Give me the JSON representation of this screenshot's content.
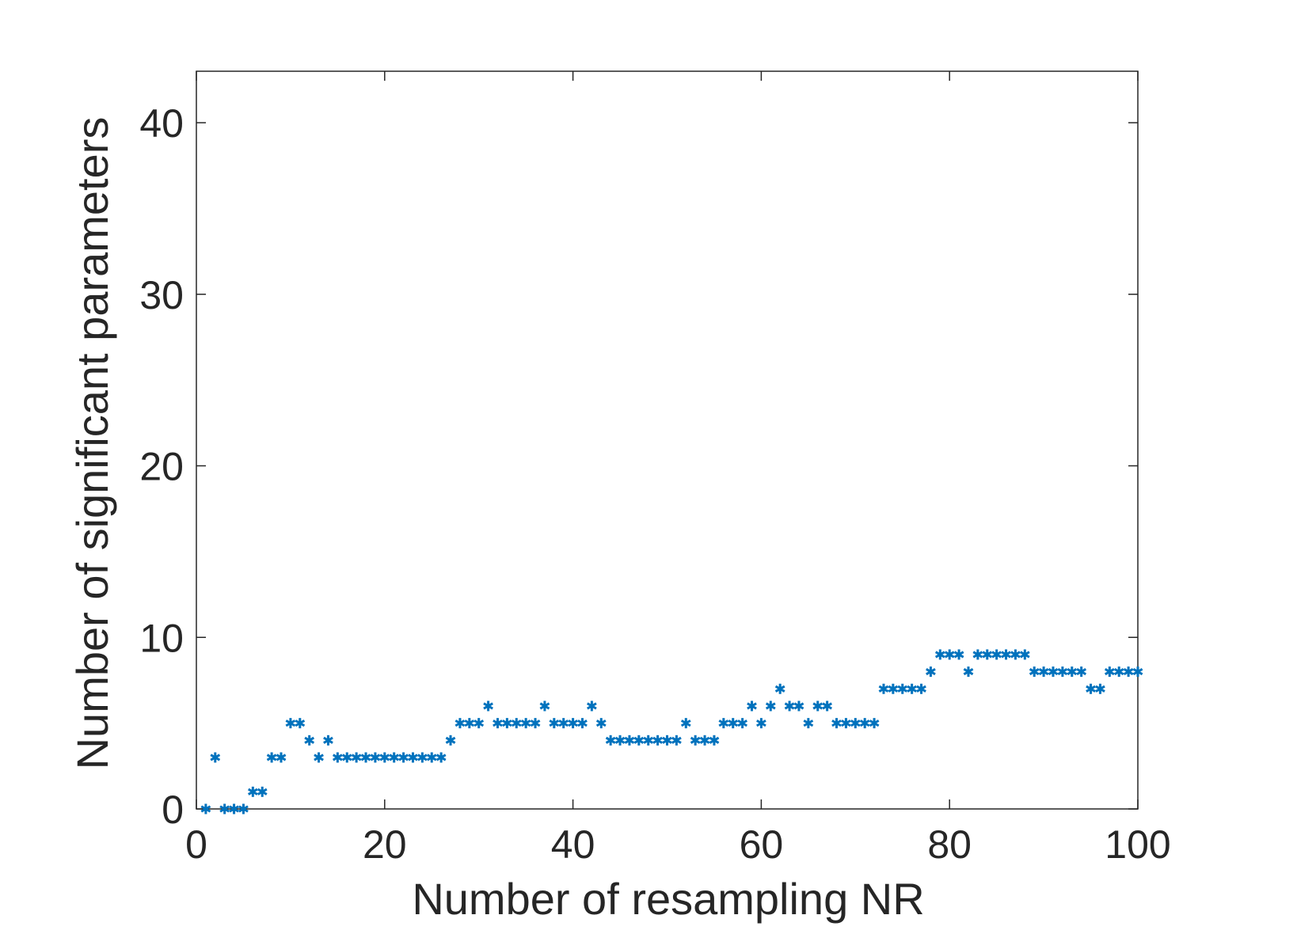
{
  "chart_data": {
    "type": "scatter",
    "xlabel": "Number of resampling NR",
    "ylabel": "Number of significant parameters",
    "xlim": [
      0,
      100
    ],
    "ylim": [
      0,
      43
    ],
    "xticks": [
      0,
      20,
      40,
      60,
      80,
      100
    ],
    "yticks": [
      0,
      10,
      20,
      30,
      40
    ],
    "grid": false,
    "marker": "asterisk",
    "series": [
      {
        "color": "#0072BD",
        "x": [
          1,
          2,
          3,
          4,
          5,
          6,
          7,
          8,
          9,
          10,
          11,
          12,
          13,
          14,
          15,
          16,
          17,
          18,
          19,
          20,
          21,
          22,
          23,
          24,
          25,
          26,
          27,
          28,
          29,
          30,
          31,
          32,
          33,
          34,
          35,
          36,
          37,
          38,
          39,
          40,
          41,
          42,
          43,
          44,
          45,
          46,
          47,
          48,
          49,
          50,
          51,
          52,
          53,
          54,
          55,
          56,
          57,
          58,
          59,
          60,
          61,
          62,
          63,
          64,
          65,
          66,
          67,
          68,
          69,
          70,
          71,
          72,
          73,
          74,
          75,
          76,
          77,
          78,
          79,
          80,
          81,
          82,
          83,
          84,
          85,
          86,
          87,
          88,
          89,
          90,
          91,
          92,
          93,
          94,
          95,
          96,
          97,
          98,
          99,
          100
        ],
        "y": [
          0,
          3,
          0,
          0,
          0,
          1,
          1,
          3,
          3,
          5,
          5,
          4,
          3,
          4,
          3,
          3,
          3,
          3,
          3,
          3,
          3,
          3,
          3,
          3,
          3,
          3,
          4,
          5,
          5,
          5,
          6,
          5,
          5,
          5,
          5,
          5,
          6,
          5,
          5,
          5,
          5,
          6,
          5,
          4,
          4,
          4,
          4,
          4,
          4,
          4,
          4,
          5,
          4,
          4,
          4,
          5,
          5,
          5,
          6,
          5,
          6,
          7,
          6,
          6,
          5,
          6,
          6,
          5,
          5,
          5,
          5,
          5,
          7,
          7,
          7,
          7,
          7,
          8,
          9,
          9,
          9,
          8,
          9,
          9,
          9,
          9,
          9,
          9,
          8,
          8,
          8,
          8,
          8,
          8,
          7,
          7,
          8,
          8,
          8,
          8
        ]
      }
    ]
  }
}
